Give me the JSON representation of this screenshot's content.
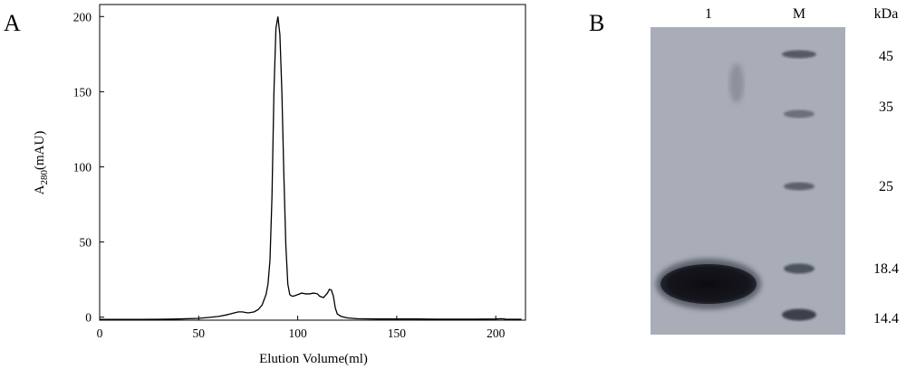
{
  "panels": {
    "a_label": "A",
    "b_label": "B"
  },
  "chart_data": [
    {
      "type": "line",
      "title": "",
      "xlabel": "Elution Volume(ml)",
      "ylabel_main": "A",
      "ylabel_sub": "280",
      "ylabel_unit": "(mAU)",
      "xlim": [
        0,
        215
      ],
      "ylim": [
        -2,
        208
      ],
      "xticks": [
        0,
        50,
        100,
        150,
        200
      ],
      "yticks": [
        0,
        50,
        100,
        150,
        200
      ],
      "grid": false,
      "series": [
        {
          "x": [
            0,
            10,
            20,
            30,
            40,
            50,
            55,
            60,
            64,
            67,
            70,
            72,
            75,
            78,
            80,
            82,
            84,
            85,
            86,
            87,
            88,
            89,
            90,
            91,
            92,
            93,
            94,
            95,
            96,
            97,
            98,
            100,
            102,
            104,
            106,
            108,
            110,
            111,
            113,
            115,
            116,
            117,
            118,
            119,
            120,
            122,
            125,
            130,
            140,
            150,
            160,
            170,
            180,
            190,
            200,
            203,
            205,
            210,
            213
          ],
          "y": [
            -1.5,
            -1.5,
            -1.5,
            -1.4,
            -1.2,
            -0.8,
            -0.2,
            0.5,
            1.5,
            2.5,
            3.5,
            3.5,
            2.8,
            3.5,
            5,
            8,
            15,
            22,
            38,
            80,
            150,
            192,
            200,
            188,
            150,
            95,
            48,
            22,
            15,
            14,
            14,
            15,
            16,
            15.5,
            15.5,
            16,
            15.5,
            14,
            13,
            16,
            18.5,
            18,
            14,
            6,
            2,
            0.5,
            -0.5,
            -1,
            -1.2,
            -1.2,
            -1.2,
            -1.3,
            -1.3,
            -1.3,
            -1.2,
            -1,
            -1.3,
            -1.4,
            -1.4
          ]
        }
      ]
    },
    {
      "type": "gel",
      "lanes": [
        "1",
        "M"
      ],
      "unit": "kDa",
      "markers": [
        "45",
        "35",
        "25",
        "18.4",
        "14.4"
      ]
    }
  ]
}
